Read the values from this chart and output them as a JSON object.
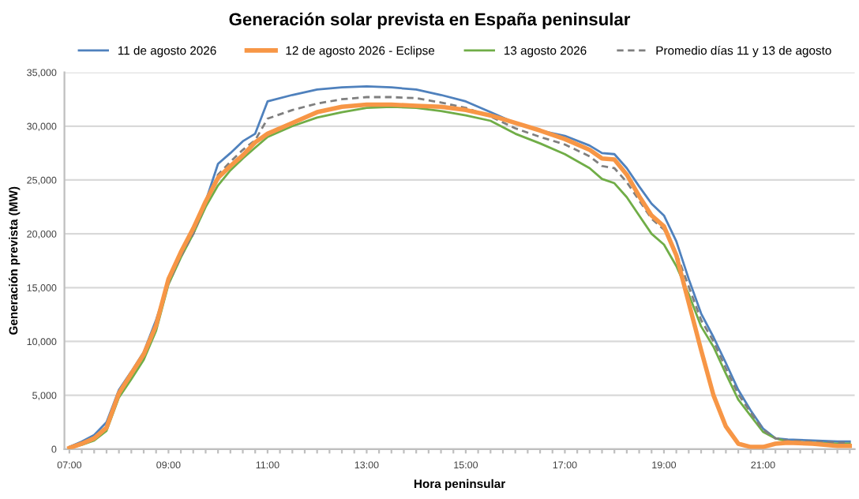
{
  "chart_data": {
    "type": "line",
    "title": "Generación solar prevista en España peninsular",
    "xlabel": "Hora peninsular",
    "ylabel": "Generación prevista (MW)",
    "x": [
      7,
      7.25,
      7.5,
      7.75,
      8,
      8.25,
      8.5,
      8.75,
      9,
      9.25,
      9.5,
      9.75,
      10,
      10.25,
      10.5,
      10.75,
      11,
      11.5,
      12,
      12.5,
      13,
      13.5,
      14,
      14.5,
      15,
      15.5,
      16,
      16.5,
      17,
      17.5,
      17.75,
      18,
      18.25,
      18.5,
      18.75,
      19,
      19.25,
      19.5,
      19.75,
      20,
      20.25,
      20.5,
      20.75,
      21,
      21.25,
      21.5,
      22,
      22.5,
      22.75
    ],
    "series": [
      {
        "name": "11 de agosto 2026",
        "color": "#4f81bd",
        "line_style": "solid",
        "values": [
          200,
          700,
          1300,
          2500,
          5500,
          7200,
          9000,
          12000,
          15500,
          18000,
          20000,
          23000,
          26500,
          27500,
          28600,
          29300,
          32300,
          32900,
          33400,
          33600,
          33700,
          33600,
          33400,
          32900,
          32300,
          31300,
          30300,
          29600,
          29100,
          28200,
          27500,
          27400,
          26100,
          24400,
          22800,
          21700,
          19300,
          15800,
          12600,
          10400,
          8000,
          5500,
          3600,
          1900,
          1000,
          900,
          800,
          700,
          700
        ]
      },
      {
        "name": "12 de agosto 2026 - Eclipse",
        "color": "#f79646",
        "line_style": "solid",
        "values": [
          100,
          500,
          1000,
          2000,
          5200,
          7000,
          8800,
          11500,
          15800,
          18300,
          20500,
          23000,
          25200,
          26300,
          27300,
          28500,
          29300,
          30300,
          31300,
          31800,
          32000,
          32000,
          31900,
          31800,
          31500,
          31000,
          30300,
          29600,
          28800,
          27800,
          27000,
          26900,
          25500,
          23500,
          21700,
          20700,
          18000,
          13600,
          9200,
          5000,
          2100,
          500,
          200,
          200,
          500,
          600,
          500,
          300,
          300
        ]
      },
      {
        "name": "13 agosto 2026",
        "color": "#70ad47",
        "line_style": "solid",
        "values": [
          100,
          400,
          800,
          1700,
          4800,
          6500,
          8300,
          11000,
          15300,
          17800,
          20000,
          22500,
          24500,
          25900,
          27000,
          28000,
          29000,
          30000,
          30800,
          31300,
          31700,
          31800,
          31700,
          31400,
          31000,
          30500,
          29300,
          28400,
          27400,
          26100,
          25100,
          24700,
          23400,
          21700,
          20000,
          19000,
          17000,
          14400,
          11400,
          9500,
          7000,
          4600,
          3100,
          1600,
          1000,
          700,
          600,
          500,
          500
        ]
      },
      {
        "name": "Promedio días 11 y 13 de agosto",
        "color": "#7f7f7f",
        "line_style": "dashed",
        "values": [
          200,
          600,
          1100,
          2100,
          5200,
          6900,
          8700,
          11500,
          15400,
          17900,
          20000,
          22800,
          25500,
          26700,
          27800,
          28700,
          30700,
          31500,
          32100,
          32500,
          32700,
          32700,
          32600,
          32200,
          31700,
          30900,
          29800,
          29000,
          28300,
          27200,
          26300,
          26100,
          24800,
          23100,
          21400,
          20400,
          18200,
          15100,
          12000,
          10000,
          7500,
          5100,
          3400,
          1800,
          1000,
          800,
          700,
          600,
          600
        ]
      }
    ],
    "xlim": [
      6.9,
      22.85
    ],
    "xticks": [
      {
        "value": 7,
        "label": "07:00"
      },
      {
        "value": 7.25,
        "label": null
      },
      {
        "value": 7.5,
        "label": null
      },
      {
        "value": 7.75,
        "label": null
      },
      {
        "value": 8,
        "label": null
      },
      {
        "value": 8.25,
        "label": null
      },
      {
        "value": 8.5,
        "label": null
      },
      {
        "value": 8.75,
        "label": null
      },
      {
        "value": 9,
        "label": "09:00"
      },
      {
        "value": 9.25,
        "label": null
      },
      {
        "value": 9.5,
        "label": null
      },
      {
        "value": 9.75,
        "label": null
      },
      {
        "value": 10,
        "label": null
      },
      {
        "value": 10.25,
        "label": null
      },
      {
        "value": 10.5,
        "label": null
      },
      {
        "value": 10.75,
        "label": null
      },
      {
        "value": 11,
        "label": "11:00"
      },
      {
        "value": 11.25,
        "label": null
      },
      {
        "value": 11.5,
        "label": null
      },
      {
        "value": 11.75,
        "label": null
      },
      {
        "value": 12,
        "label": null
      },
      {
        "value": 12.25,
        "label": null
      },
      {
        "value": 12.5,
        "label": null
      },
      {
        "value": 12.75,
        "label": null
      },
      {
        "value": 13,
        "label": "13:00"
      },
      {
        "value": 13.25,
        "label": null
      },
      {
        "value": 13.5,
        "label": null
      },
      {
        "value": 13.75,
        "label": null
      },
      {
        "value": 14,
        "label": null
      },
      {
        "value": 14.25,
        "label": null
      },
      {
        "value": 14.5,
        "label": null
      },
      {
        "value": 14.75,
        "label": null
      },
      {
        "value": 15,
        "label": "15:00"
      },
      {
        "value": 15.25,
        "label": null
      },
      {
        "value": 15.5,
        "label": null
      },
      {
        "value": 15.75,
        "label": null
      },
      {
        "value": 16,
        "label": null
      },
      {
        "value": 16.25,
        "label": null
      },
      {
        "value": 16.5,
        "label": null
      },
      {
        "value": 16.75,
        "label": null
      },
      {
        "value": 17,
        "label": "17:00"
      },
      {
        "value": 17.25,
        "label": null
      },
      {
        "value": 17.5,
        "label": null
      },
      {
        "value": 17.75,
        "label": null
      },
      {
        "value": 18,
        "label": null
      },
      {
        "value": 18.25,
        "label": null
      },
      {
        "value": 18.5,
        "label": null
      },
      {
        "value": 18.75,
        "label": null
      },
      {
        "value": 19,
        "label": "19:00"
      },
      {
        "value": 19.25,
        "label": null
      },
      {
        "value": 19.5,
        "label": null
      },
      {
        "value": 19.75,
        "label": null
      },
      {
        "value": 20,
        "label": null
      },
      {
        "value": 20.25,
        "label": null
      },
      {
        "value": 20.5,
        "label": null
      },
      {
        "value": 20.75,
        "label": null
      },
      {
        "value": 21,
        "label": "21:00"
      },
      {
        "value": 21.25,
        "label": null
      },
      {
        "value": 21.5,
        "label": null
      },
      {
        "value": 21.75,
        "label": null
      },
      {
        "value": 22,
        "label": null
      },
      {
        "value": 22.25,
        "label": null
      },
      {
        "value": 22.5,
        "label": null
      },
      {
        "value": 22.75,
        "label": null
      }
    ],
    "ylim": [
      0,
      35000
    ],
    "yticks": [
      {
        "value": 0,
        "label": "0"
      },
      {
        "value": 5000,
        "label": "5,000"
      },
      {
        "value": 10000,
        "label": "10,000"
      },
      {
        "value": 15000,
        "label": "15,000"
      },
      {
        "value": 20000,
        "label": "20,000"
      },
      {
        "value": 25000,
        "label": "25,000"
      },
      {
        "value": 30000,
        "label": "30,000"
      },
      {
        "value": 35000,
        "label": "35,000"
      }
    ],
    "grid": "y",
    "legend": "top",
    "marker": "none"
  }
}
